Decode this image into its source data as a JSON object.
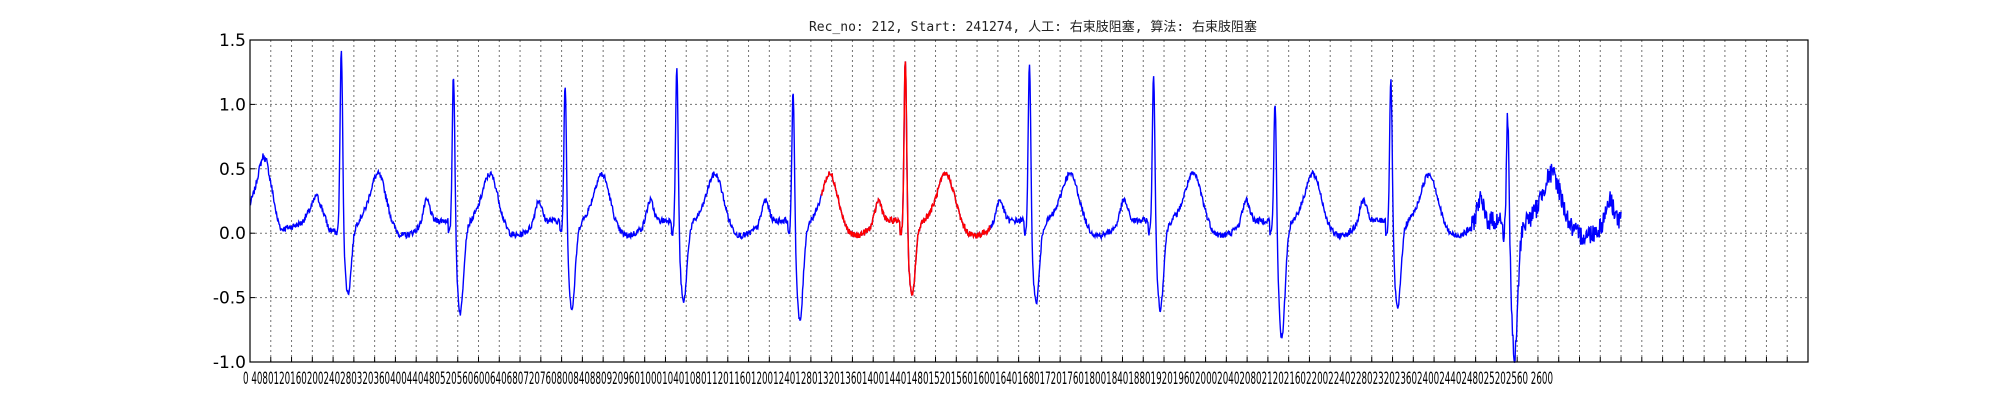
{
  "chart_data": {
    "type": "line",
    "title": "Rec_no: 212, Start: 241274, 人工: 右束肢阻塞, 算法: 右束肢阻塞",
    "xlabel": "",
    "ylabel": "",
    "xlim": [
      0,
      3000
    ],
    "ylim": [
      -1.0,
      1.5
    ],
    "grid": true,
    "x_tick_step": 40,
    "x_tick_label_text": "0 40801201602002402803203604004404805205606006406807207608008408809209601000104010801120116012001240128013201360140014401480152015601600164016801720176018001840188019201960200020402080212021602200224022802320236024002440248025202560 2600",
    "y_ticks": [
      {
        "value": 1.5,
        "label": "1.5"
      },
      {
        "value": 1.0,
        "label": "1.0"
      },
      {
        "value": 0.5,
        "label": "0.5"
      },
      {
        "value": 0.0,
        "label": "0.0"
      },
      {
        "value": -0.5,
        "label": "-0.5"
      },
      {
        "value": -1.0,
        "label": "-1.0"
      }
    ],
    "series_styles": [
      {
        "color": "#0000ff"
      },
      {
        "color": "#ff0000"
      }
    ],
    "highlight_segments": [
      [
        1100,
        1425
      ]
    ],
    "sample_rate": 1,
    "waveform": {
      "x_end": 2640,
      "baseline_knots": [
        [
          0,
          0.22
        ],
        [
          10,
          0.35
        ],
        [
          18,
          0.5
        ],
        [
          25,
          0.6
        ],
        [
          32,
          0.56
        ],
        [
          42,
          0.35
        ],
        [
          52,
          0.12
        ],
        [
          60,
          0.03
        ],
        [
          80,
          0.05
        ],
        [
          100,
          0.08
        ],
        [
          115,
          0.18
        ],
        [
          128,
          0.3
        ],
        [
          140,
          0.18
        ],
        [
          152,
          0.03
        ],
        [
          170,
          0.0
        ]
      ],
      "beats": [
        {
          "r": 176,
          "amp": 1.45,
          "s": -0.45
        },
        {
          "r": 392,
          "amp": 1.28,
          "s": -0.6
        },
        {
          "r": 607,
          "amp": 1.2,
          "s": -0.57
        },
        {
          "r": 822,
          "amp": 1.32,
          "s": -0.52
        },
        {
          "r": 1046,
          "amp": 1.15,
          "s": -0.67
        },
        {
          "r": 1262,
          "amp": 1.37,
          "s": -0.47
        },
        {
          "r": 1501,
          "amp": 1.34,
          "s": -0.52
        },
        {
          "r": 1740,
          "amp": 1.26,
          "s": -0.57
        },
        {
          "r": 1974,
          "amp": 1.06,
          "s": -0.8
        },
        {
          "r": 2197,
          "amp": 1.24,
          "s": -0.57
        },
        {
          "r": 2422,
          "amp": 0.99,
          "s": -0.95
        }
      ]
    }
  }
}
